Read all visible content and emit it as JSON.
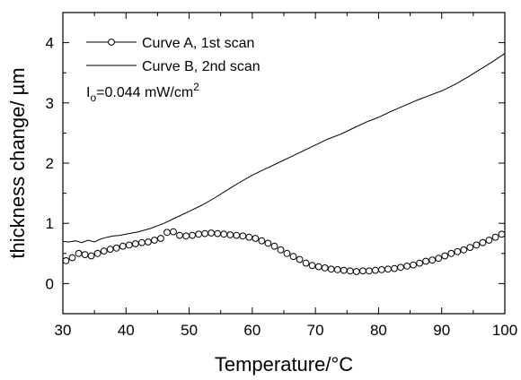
{
  "chart_data": {
    "type": "scatter",
    "xlabel": "Temperature/°C",
    "ylabel": "thickness change/ µm",
    "xlim": [
      30,
      100
    ],
    "ylim": [
      -0.5,
      4.5
    ],
    "xticks": [
      30,
      40,
      50,
      60,
      70,
      80,
      90,
      100
    ],
    "yticks": [
      0,
      1,
      2,
      3,
      4
    ],
    "grid": false,
    "legend_position": "top-left",
    "annotation": {
      "prefix": "I",
      "subscript": "o",
      "value": "=0.044 mW/cm",
      "superscript": "2"
    },
    "series": [
      {
        "name": "Curve A, 1st scan",
        "style": "open-circle-markers",
        "x": [
          30.5,
          31.5,
          32.5,
          33.5,
          34.5,
          35.5,
          36.5,
          37.5,
          38.5,
          39.5,
          40.5,
          41.5,
          42.5,
          43.5,
          44.5,
          45.5,
          46.5,
          47.5,
          48.5,
          49.5,
          50.5,
          51.5,
          52.5,
          53.5,
          54.5,
          55.5,
          56.5,
          57.5,
          58.5,
          59.5,
          60.5,
          61.5,
          62.5,
          63.5,
          64.5,
          65.5,
          66.5,
          67.5,
          68.5,
          69.5,
          70.5,
          71.5,
          72.5,
          73.5,
          74.5,
          75.5,
          76.5,
          77.5,
          78.5,
          79.5,
          80.5,
          81.5,
          82.5,
          83.5,
          84.5,
          85.5,
          86.5,
          87.5,
          88.5,
          89.5,
          90.5,
          91.5,
          92.5,
          93.5,
          94.5,
          95.5,
          96.5,
          97.5,
          98.5,
          99.5
        ],
        "values": [
          0.38,
          0.43,
          0.5,
          0.48,
          0.46,
          0.5,
          0.54,
          0.57,
          0.59,
          0.62,
          0.64,
          0.66,
          0.68,
          0.69,
          0.72,
          0.75,
          0.85,
          0.86,
          0.8,
          0.79,
          0.8,
          0.82,
          0.83,
          0.84,
          0.83,
          0.82,
          0.81,
          0.8,
          0.79,
          0.77,
          0.75,
          0.71,
          0.67,
          0.62,
          0.56,
          0.5,
          0.45,
          0.4,
          0.34,
          0.3,
          0.28,
          0.26,
          0.24,
          0.23,
          0.22,
          0.21,
          0.2,
          0.21,
          0.21,
          0.22,
          0.23,
          0.24,
          0.25,
          0.27,
          0.29,
          0.31,
          0.34,
          0.37,
          0.39,
          0.42,
          0.46,
          0.5,
          0.53,
          0.56,
          0.6,
          0.64,
          0.68,
          0.72,
          0.77,
          0.82
        ],
        "color": "#000000"
      },
      {
        "name": "Curve B, 2nd scan",
        "style": "line",
        "x": [
          30,
          31,
          32,
          33,
          34,
          35,
          36,
          37,
          38,
          39,
          40,
          42,
          44,
          46,
          48,
          50,
          52,
          54,
          56,
          58,
          60,
          62,
          64,
          66,
          68,
          70,
          72,
          74,
          76,
          78,
          80,
          82,
          84,
          86,
          88,
          90,
          92,
          94,
          96,
          98,
          100
        ],
        "values": [
          0.7,
          0.69,
          0.71,
          0.68,
          0.72,
          0.69,
          0.74,
          0.77,
          0.79,
          0.8,
          0.82,
          0.86,
          0.92,
          1.0,
          1.1,
          1.2,
          1.3,
          1.42,
          1.55,
          1.68,
          1.8,
          1.9,
          2.0,
          2.1,
          2.2,
          2.3,
          2.4,
          2.48,
          2.58,
          2.68,
          2.76,
          2.86,
          2.95,
          3.04,
          3.12,
          3.2,
          3.3,
          3.42,
          3.55,
          3.68,
          3.82
        ],
        "color": "#000000"
      }
    ]
  }
}
